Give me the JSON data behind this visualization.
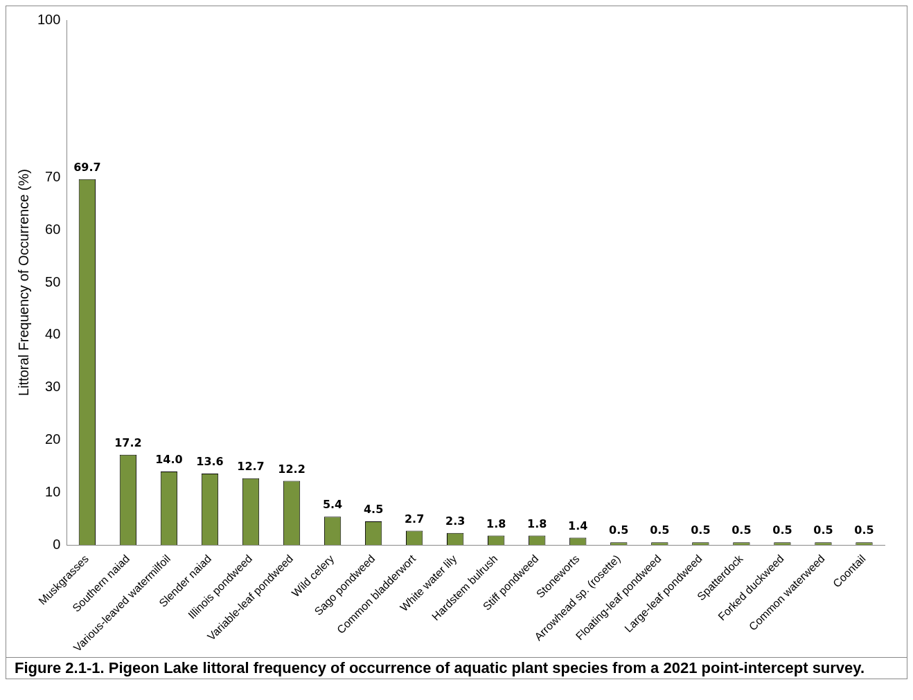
{
  "chart_data": {
    "type": "bar",
    "title": "Figure 2.1-1.  Pigeon Lake littoral frequency of occurrence of aquatic plant species from a 2021 point-intercept survey.",
    "ylabel": "Littoral Frequency of Occurrence (%)",
    "categories": [
      "Muskgrasses",
      "Southern naiad",
      "Various-leaved watermilfoil",
      "Slender naiad",
      "Illinois pondweed",
      "Variable-leaf pondweed",
      "Wild celery",
      "Sago pondweed",
      "Common bladderwort",
      "White water lily",
      "Hardstem bulrush",
      "Stiff pondweed",
      "Stoneworts",
      "Arrowhead sp. (rosette)",
      "Floating-leaf pondweed",
      "Large-leaf pondweed",
      "Spatterdock",
      "Forked duckweed",
      "Common waterweed",
      "Coontail"
    ],
    "values": [
      69.7,
      17.2,
      14.0,
      13.6,
      12.7,
      12.2,
      5.4,
      4.5,
      2.7,
      2.3,
      1.8,
      1.8,
      1.4,
      0.5,
      0.5,
      0.5,
      0.5,
      0.5,
      0.5,
      0.5
    ],
    "value_labels": [
      "69.7",
      "17.2",
      "14.0",
      "13.6",
      "12.7",
      "12.2",
      "5.4",
      "4.5",
      "2.7",
      "2.3",
      "1.8",
      "1.8",
      "1.4",
      "0.5",
      "0.5",
      "0.5",
      "0.5",
      "0.5",
      "0.5",
      "0.5"
    ],
    "color": "#77933c",
    "ylim": [
      0,
      100
    ],
    "yticks": [
      0,
      10,
      20,
      30,
      40,
      50,
      60,
      70,
      100
    ],
    "grid": false,
    "legend": false
  }
}
